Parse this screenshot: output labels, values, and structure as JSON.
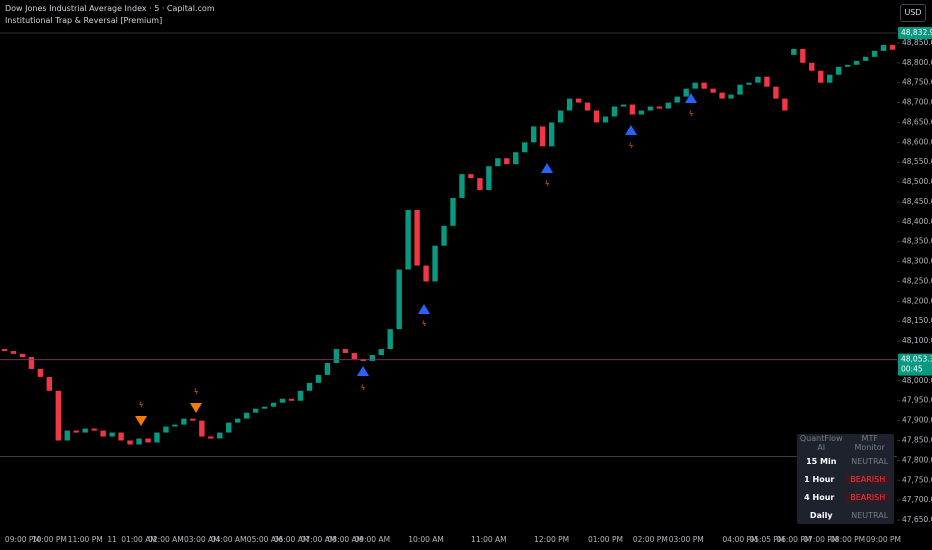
{
  "header": {
    "title": "Dow Jones Industrial Average Index · 5 · Capital.com",
    "indicator": "Institutional Trap & Reversal [Premium]",
    "currency": "USD"
  },
  "mtf_table": {
    "header": [
      "QuantFlow AI",
      "MTF Monitor"
    ],
    "rows": [
      [
        "15 Min",
        "NEUTRAL"
      ],
      [
        "1 Hour",
        "BEARISH"
      ],
      [
        "4 Hour",
        "BEARISH"
      ],
      [
        "Daily",
        "NEUTRAL"
      ]
    ]
  },
  "chart_data": {
    "type": "candlestick",
    "up_color": "#089981",
    "down_color": "#f23645",
    "categories": [
      null,
      null,
      "09:00 PM",
      null,
      null,
      "10:00 PM",
      null,
      null,
      null,
      "11:00 PM",
      null,
      null,
      "11",
      null,
      null,
      "01:00 AM",
      null,
      null,
      "02:00 AM",
      null,
      null,
      null,
      "03:00 AM",
      null,
      null,
      "04:00 AM",
      null,
      null,
      null,
      "05:00 AM",
      null,
      null,
      "06:00 AM",
      null,
      null,
      "07:00 AM",
      null,
      null,
      "08:00 AM",
      null,
      null,
      "09:00 AM",
      null,
      null,
      null,
      null,
      null,
      "10:00 AM",
      null,
      null,
      null,
      null,
      null,
      null,
      "11:00 AM",
      null,
      null,
      null,
      null,
      null,
      null,
      "12:00 PM",
      null,
      null,
      null,
      null,
      null,
      "01:00 PM",
      null,
      null,
      null,
      null,
      "02:00 PM",
      null,
      null,
      null,
      "03:00 PM",
      null,
      null,
      null,
      null,
      null,
      "04:00 PM",
      null,
      null,
      "05:05 PM",
      null,
      null,
      "06:00 PM",
      null,
      null,
      "07:00 PM",
      null,
      null,
      "08:00 PM",
      null,
      null,
      null,
      "09:00 PM",
      null
    ],
    "open": [
      48080,
      48075,
      48068,
      48060,
      48030,
      48010,
      47975,
      47850,
      47875,
      47870,
      47880,
      47875,
      47860,
      47870,
      47850,
      47840,
      47855,
      47845,
      47870,
      47885,
      47890,
      47905,
      47900,
      47860,
      47855,
      47870,
      47895,
      47905,
      47920,
      47930,
      47935,
      47945,
      47955,
      47950,
      47975,
      47995,
      48015,
      48045,
      48080,
      48070,
      48055,
      48050,
      48065,
      48080,
      48130,
      48280,
      48430,
      48290,
      48250,
      48340,
      48390,
      48460,
      48520,
      48510,
      48480,
      48540,
      48560,
      48545,
      48575,
      48600,
      48640,
      48590,
      48650,
      48680,
      48710,
      48700,
      48680,
      48650,
      48665,
      48690,
      48695,
      48670,
      48680,
      48690,
      48685,
      48700,
      48715,
      48735,
      48750,
      48735,
      48725,
      48710,
      48720,
      48745,
      48750,
      48765,
      48740,
      48710,
      48820,
      48835,
      48800,
      48780,
      48750,
      48770,
      48790,
      48795,
      48805,
      48815,
      48830,
      48845
    ],
    "close": [
      48075,
      48068,
      48060,
      48030,
      48010,
      47975,
      47850,
      47875,
      47870,
      47880,
      47875,
      47860,
      47870,
      47850,
      47840,
      47855,
      47845,
      47870,
      47885,
      47890,
      47905,
      47900,
      47860,
      47855,
      47870,
      47895,
      47905,
      47920,
      47930,
      47935,
      47945,
      47955,
      47950,
      47975,
      47995,
      48015,
      48045,
      48080,
      48070,
      48055,
      48050,
      48065,
      48080,
      48130,
      48280,
      48430,
      48290,
      48250,
      48340,
      48390,
      48460,
      48520,
      48510,
      48480,
      48540,
      48560,
      48545,
      48575,
      48600,
      48640,
      48590,
      48650,
      48680,
      48710,
      48700,
      48680,
      48650,
      48665,
      48690,
      48695,
      48670,
      48680,
      48690,
      48685,
      48700,
      48715,
      48735,
      48750,
      48735,
      48725,
      48710,
      48720,
      48745,
      48750,
      48765,
      48740,
      48710,
      48680,
      48835,
      48800,
      48780,
      48750,
      48770,
      48790,
      48795,
      48805,
      48815,
      48830,
      48845,
      48832.9
    ],
    "ylim": [
      47645,
      48958
    ],
    "yticks": [
      {
        "value": 47650,
        "label": "47,650.0"
      },
      {
        "value": 47700,
        "label": "47,700.0"
      },
      {
        "value": 47750,
        "label": "47,750.0"
      },
      {
        "value": 47800,
        "label": "47,800.0"
      },
      {
        "value": 47850,
        "label": "47,850.0"
      },
      {
        "value": 47900,
        "label": "47,900.0"
      },
      {
        "value": 47950,
        "label": "47,950.0"
      },
      {
        "value": 48000,
        "label": "48,000.0"
      },
      {
        "value": 48050,
        "label": "48,050.0"
      },
      {
        "value": 48100,
        "label": "48,100.0"
      },
      {
        "value": 48150,
        "label": "48,150.0"
      },
      {
        "value": 48200,
        "label": "48,200.0"
      },
      {
        "value": 48250,
        "label": "48,250.0"
      },
      {
        "value": 48300,
        "label": "48,300.0"
      },
      {
        "value": 48350,
        "label": "48,350.0"
      },
      {
        "value": 48400,
        "label": "48,400.0"
      },
      {
        "value": 48450,
        "label": "48,450.0"
      },
      {
        "value": 48500,
        "label": "48,500.0"
      },
      {
        "value": 48550,
        "label": "48,550.0"
      },
      {
        "value": 48600,
        "label": "48,600.0"
      },
      {
        "value": 48650,
        "label": "48,650.0"
      },
      {
        "value": 48700,
        "label": "48,700.0"
      },
      {
        "value": 48750,
        "label": "48,750.0"
      },
      {
        "value": 48800,
        "label": "48,800.0"
      },
      {
        "value": 48850,
        "label": "48,850.0"
      }
    ],
    "levels": [
      {
        "value": 47810,
        "color": "#5d606b"
      },
      {
        "value": 48875,
        "color": "#5d606b"
      }
    ],
    "price_tags": [
      {
        "value": 48832.9,
        "label": "48,832.9",
        "color": "#089981"
      },
      {
        "value": 48053.3,
        "label": "48,053.3",
        "countdown": "00:45",
        "color": "#089981",
        "line_color": "#7b3f6e"
      }
    ]
  }
}
